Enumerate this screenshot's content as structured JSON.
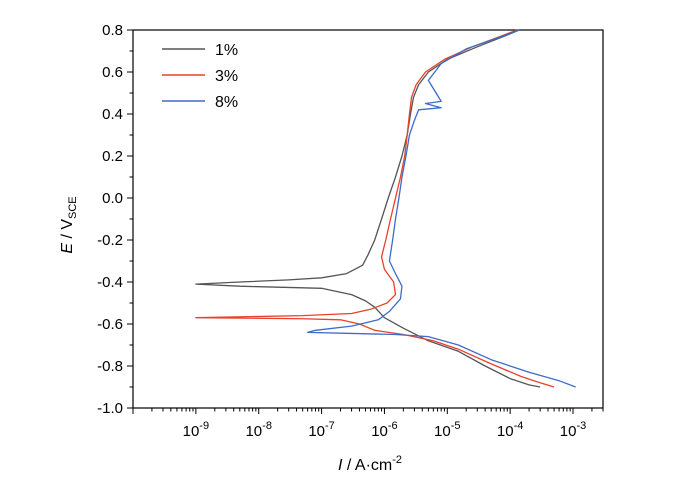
{
  "chart_data": {
    "type": "line",
    "xscale": "log",
    "xlim": [
      1e-10,
      0.003
    ],
    "ylim": [
      -1.0,
      0.8
    ],
    "x_ticks": [
      {
        "value": 1e-09,
        "base": "10",
        "exp": "-9"
      },
      {
        "value": 1e-08,
        "base": "10",
        "exp": "-8"
      },
      {
        "value": 1e-07,
        "base": "10",
        "exp": "-7"
      },
      {
        "value": 1e-06,
        "base": "10",
        "exp": "-6"
      },
      {
        "value": 1e-05,
        "base": "10",
        "exp": "-5"
      },
      {
        "value": 0.0001,
        "base": "10",
        "exp": "-4"
      },
      {
        "value": 0.001,
        "base": "10",
        "exp": "-3"
      }
    ],
    "y_ticks": [
      {
        "value": 0.8,
        "label": "0.8"
      },
      {
        "value": 0.6,
        "label": "0.6"
      },
      {
        "value": 0.4,
        "label": "0.4"
      },
      {
        "value": 0.2,
        "label": "0.2"
      },
      {
        "value": 0.0,
        "label": "0.0"
      },
      {
        "value": -0.2,
        "label": "-0.2"
      },
      {
        "value": -0.4,
        "label": "-0.4"
      },
      {
        "value": -0.6,
        "label": "-0.6"
      },
      {
        "value": -0.8,
        "label": "-0.8"
      },
      {
        "value": -1.0,
        "label": "-1.0"
      }
    ],
    "xlabel": {
      "italic": "I",
      "rest": " / A·cm",
      "sup": "-2"
    },
    "ylabel": {
      "italic": "E",
      "rest": " / V",
      "sub": "SCE"
    },
    "legend_position": "top-left",
    "grid": false,
    "series": [
      {
        "name": "1%",
        "color": "#555555",
        "points": [
          [
            0.00014,
            0.8
          ],
          [
            8e-05,
            0.77
          ],
          [
            3e-05,
            0.72
          ],
          [
            1e-05,
            0.66
          ],
          [
            5e-06,
            0.6
          ],
          [
            3.5e-06,
            0.54
          ],
          [
            2.9e-06,
            0.48
          ],
          [
            2.6e-06,
            0.4
          ],
          [
            2.3e-06,
            0.3
          ],
          [
            1.9e-06,
            0.2
          ],
          [
            1.5e-06,
            0.1
          ],
          [
            1.15e-06,
            0.0
          ],
          [
            9e-07,
            -0.1
          ],
          [
            7e-07,
            -0.2
          ],
          [
            5.5e-07,
            -0.27
          ],
          [
            4.5e-07,
            -0.32
          ],
          [
            2.5e-07,
            -0.36
          ],
          [
            1e-07,
            -0.38
          ],
          [
            3e-08,
            -0.39
          ],
          [
            5e-09,
            -0.4
          ],
          [
            1e-09,
            -0.41
          ],
          [
            5e-09,
            -0.42
          ],
          [
            1e-07,
            -0.43
          ],
          [
            3e-07,
            -0.46
          ],
          [
            5e-07,
            -0.49
          ],
          [
            7e-07,
            -0.52
          ],
          [
            1e-06,
            -0.57
          ],
          [
            2e-06,
            -0.62
          ],
          [
            5e-06,
            -0.68
          ],
          [
            1.5e-05,
            -0.73
          ],
          [
            4e-05,
            -0.8
          ],
          [
            0.0001,
            -0.86
          ],
          [
            0.0002,
            -0.89
          ],
          [
            0.0003,
            -0.9
          ]
        ]
      },
      {
        "name": "3%",
        "color": "#e8412c",
        "points": [
          [
            0.00013,
            0.8
          ],
          [
            7e-05,
            0.77
          ],
          [
            2.5e-05,
            0.72
          ],
          [
            9e-06,
            0.66
          ],
          [
            4.5e-06,
            0.6
          ],
          [
            3.2e-06,
            0.54
          ],
          [
            2.7e-06,
            0.48
          ],
          [
            2.5e-06,
            0.4
          ],
          [
            2.3e-06,
            0.3
          ],
          [
            2.1e-06,
            0.2
          ],
          [
            1.8e-06,
            0.1
          ],
          [
            1.5e-06,
            0.0
          ],
          [
            1.25e-06,
            -0.1
          ],
          [
            1.05e-06,
            -0.2
          ],
          [
            9e-07,
            -0.28
          ],
          [
            1e-06,
            -0.34
          ],
          [
            1.4e-06,
            -0.4
          ],
          [
            1.5e-06,
            -0.46
          ],
          [
            1.1e-06,
            -0.5
          ],
          [
            6e-07,
            -0.53
          ],
          [
            3e-07,
            -0.55
          ],
          [
            5e-08,
            -0.56
          ],
          [
            1e-09,
            -0.57
          ],
          [
            5e-08,
            -0.575
          ],
          [
            2e-07,
            -0.58
          ],
          [
            4e-07,
            -0.6
          ],
          [
            7e-07,
            -0.63
          ],
          [
            2e-06,
            -0.65
          ],
          [
            6e-06,
            -0.68
          ],
          [
            1.5e-05,
            -0.72
          ],
          [
            5e-05,
            -0.79
          ],
          [
            0.00015,
            -0.85
          ],
          [
            0.0003,
            -0.88
          ],
          [
            0.0005,
            -0.9
          ]
        ]
      },
      {
        "name": "8%",
        "color": "#3d6cc9",
        "points": [
          [
            0.00014,
            0.8
          ],
          [
            6e-05,
            0.76
          ],
          [
            2e-05,
            0.71
          ],
          [
            8e-06,
            0.64
          ],
          [
            5e-06,
            0.56
          ],
          [
            8e-06,
            0.46
          ],
          [
            4.5e-06,
            0.45
          ],
          [
            8e-06,
            0.43
          ],
          [
            3.5e-06,
            0.42
          ],
          [
            3e-06,
            0.37
          ],
          [
            2.5e-06,
            0.3
          ],
          [
            2.2e-06,
            0.2
          ],
          [
            1.9e-06,
            0.1
          ],
          [
            1.7e-06,
            0.0
          ],
          [
            1.5e-06,
            -0.1
          ],
          [
            1.35e-06,
            -0.2
          ],
          [
            1.2e-06,
            -0.3
          ],
          [
            1.5e-06,
            -0.36
          ],
          [
            1.9e-06,
            -0.42
          ],
          [
            1.8e-06,
            -0.48
          ],
          [
            1.2e-06,
            -0.54
          ],
          [
            8e-07,
            -0.58
          ],
          [
            3e-07,
            -0.61
          ],
          [
            8e-08,
            -0.63
          ],
          [
            6e-08,
            -0.64
          ],
          [
            3e-07,
            -0.645
          ],
          [
            1.5e-06,
            -0.65
          ],
          [
            5e-06,
            -0.66
          ],
          [
            1.5e-05,
            -0.7
          ],
          [
            5e-05,
            -0.77
          ],
          [
            0.0002,
            -0.83
          ],
          [
            0.0006,
            -0.87
          ],
          [
            0.0011,
            -0.9
          ]
        ]
      }
    ]
  }
}
